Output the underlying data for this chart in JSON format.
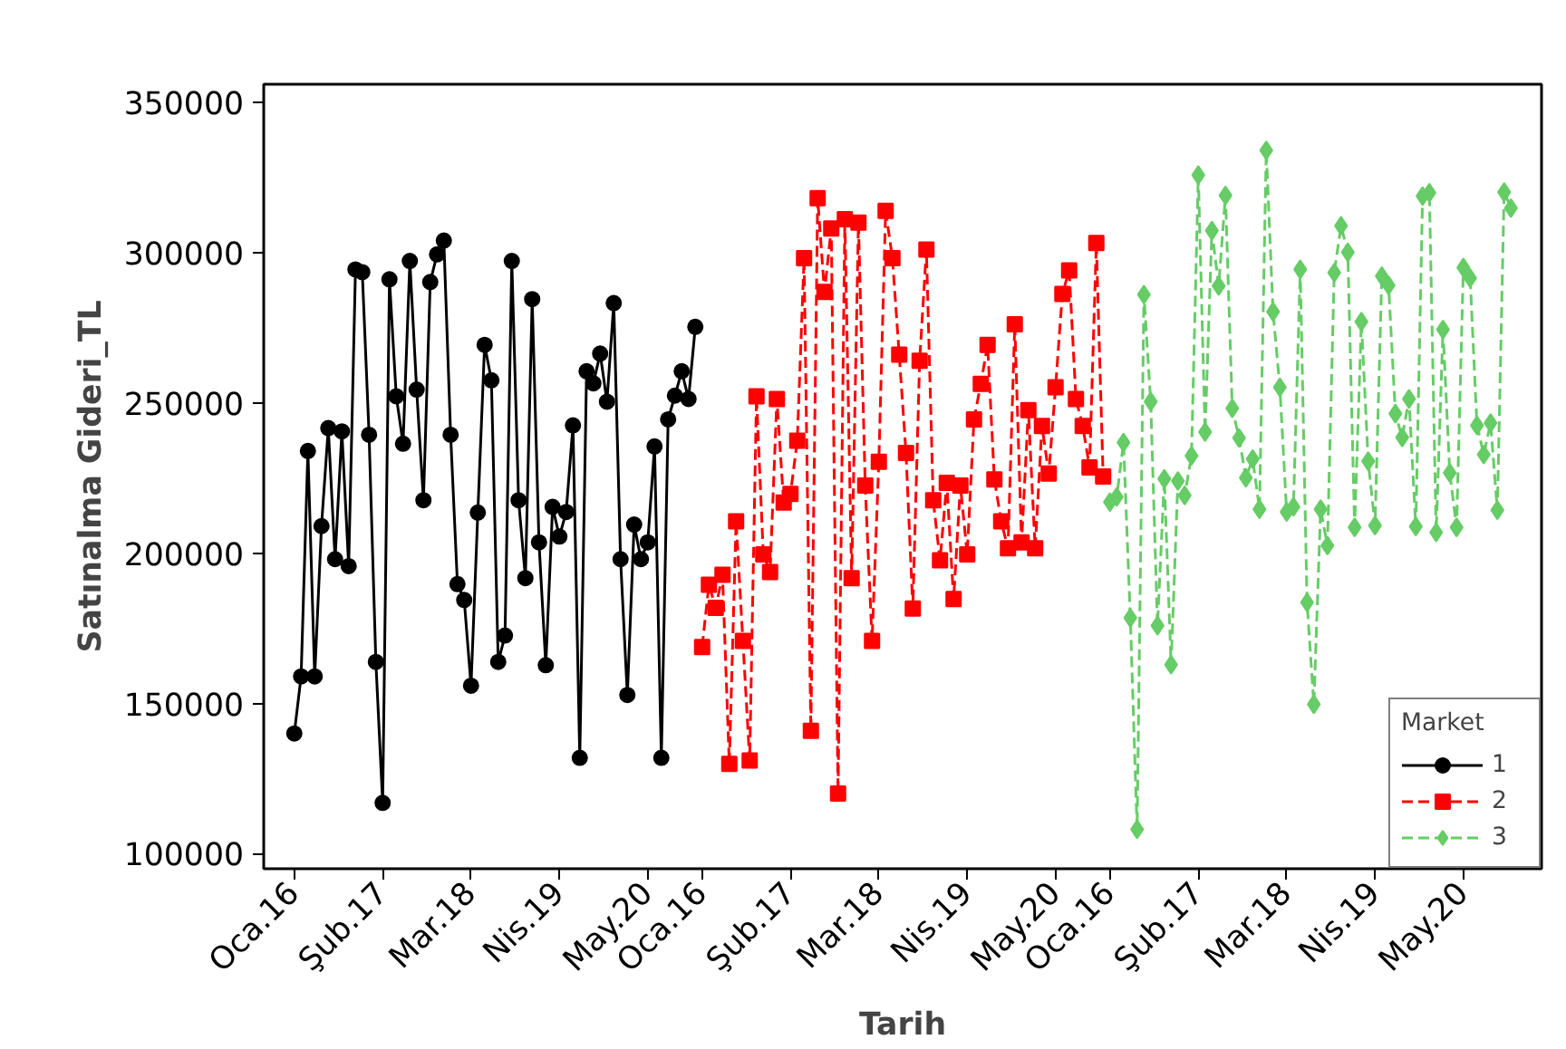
{
  "chart_data": {
    "type": "line",
    "xlabel": "Tarih",
    "ylabel": "Satınalma Gideri_TL",
    "legend_title": "Market",
    "categories": [
      "Oca.16",
      null,
      null,
      null,
      null,
      null,
      null,
      null,
      null,
      null,
      null,
      null,
      null,
      "Şub.17",
      null,
      null,
      null,
      null,
      null,
      null,
      null,
      null,
      null,
      null,
      null,
      null,
      "Mar.18",
      null,
      null,
      null,
      null,
      null,
      null,
      null,
      null,
      null,
      null,
      null,
      null,
      "Nis.19",
      null,
      null,
      null,
      null,
      null,
      null,
      null,
      null,
      null,
      null,
      null,
      null,
      "May.20",
      null,
      null,
      null,
      null,
      null,
      null,
      null,
      "Oca.16",
      null,
      null,
      null,
      null,
      null,
      null,
      null,
      null,
      null,
      null,
      null,
      null,
      "Şub.17",
      null,
      null,
      null,
      null,
      null,
      null,
      null,
      null,
      null,
      null,
      null,
      null,
      "Mar.18",
      null,
      null,
      null,
      null,
      null,
      null,
      null,
      null,
      null,
      null,
      null,
      null,
      "Nis.19",
      null,
      null,
      null,
      null,
      null,
      null,
      null,
      null,
      null,
      null,
      null,
      null,
      "May.20",
      null,
      null,
      null,
      null,
      null,
      null,
      null,
      "Oca.16",
      null,
      null,
      null,
      null,
      null,
      null,
      null,
      null,
      null,
      null,
      null,
      null,
      "Şub.17",
      null,
      null,
      null,
      null,
      null,
      null,
      null,
      null,
      null,
      null,
      null,
      null,
      "Mar.18",
      null,
      null,
      null,
      null,
      null,
      null,
      null,
      null,
      null,
      null,
      null,
      null,
      "Nis.19",
      null,
      null,
      null,
      null,
      null,
      null,
      null,
      null,
      null,
      null,
      null,
      null,
      "May.20",
      null,
      null,
      null,
      null,
      null,
      null,
      null
    ],
    "series": [
      {
        "name": "1",
        "color": "#000000",
        "marker": "circle",
        "line_style": "solid",
        "values": [
          140000,
          159000,
          234000,
          159000,
          209000,
          241600,
          198000,
          240500,
          195700,
          294400,
          293500,
          239400,
          163800,
          116900,
          291100,
          252200,
          236400,
          297200,
          254400,
          217600,
          290200,
          299400,
          304000,
          239400,
          189700,
          184400,
          155900,
          213500,
          269300,
          257500,
          163800,
          172600,
          297200,
          217600,
          191700,
          284500,
          203600,
          162700,
          215400,
          205500,
          213700,
          242500,
          131900,
          260500,
          256500,
          266400,
          250400,
          283200,
          198000,
          152800,
          209500,
          198000,
          203600,
          235500,
          131900,
          244500,
          252400,
          260500,
          251300,
          275300,
          null,
          null,
          null,
          null,
          null,
          null,
          null,
          null,
          null,
          null,
          null,
          null,
          null,
          null,
          null,
          null,
          null,
          null,
          null,
          null,
          null,
          null,
          null,
          null,
          null,
          null,
          null,
          null,
          null,
          null,
          null,
          null,
          null,
          null,
          null,
          null,
          null,
          null,
          null,
          null,
          null,
          null,
          null,
          null,
          null,
          null,
          null,
          null,
          null,
          null,
          null,
          null,
          null,
          null,
          null,
          null,
          null,
          null,
          null,
          null,
          null,
          null,
          null,
          null,
          null,
          null,
          null,
          null,
          null,
          null,
          null,
          null,
          null,
          null,
          null,
          null,
          null,
          null,
          null,
          null,
          null,
          null,
          null,
          null,
          null,
          null,
          null,
          null,
          null,
          null,
          null,
          null,
          null,
          null,
          null,
          null,
          null,
          null,
          null,
          null,
          null,
          null,
          null,
          null,
          null,
          null,
          null,
          null,
          null,
          null,
          null,
          null,
          null,
          null,
          null,
          null,
          null,
          null,
          null,
          null
        ]
      },
      {
        "name": "2",
        "color": "#ff0000",
        "marker": "square",
        "line_style": "dashed",
        "values": [
          null,
          null,
          null,
          null,
          null,
          null,
          null,
          null,
          null,
          null,
          null,
          null,
          null,
          null,
          null,
          null,
          null,
          null,
          null,
          null,
          null,
          null,
          null,
          null,
          null,
          null,
          null,
          null,
          null,
          null,
          null,
          null,
          null,
          null,
          null,
          null,
          null,
          null,
          null,
          null,
          null,
          null,
          null,
          null,
          null,
          null,
          null,
          null,
          null,
          null,
          null,
          null,
          null,
          null,
          null,
          null,
          null,
          null,
          null,
          null,
          168800,
          189500,
          181800,
          192800,
          129900,
          210600,
          170800,
          131000,
          252200,
          199600,
          193700,
          251300,
          216800,
          219700,
          237400,
          298100,
          140900,
          318100,
          286900,
          308000,
          120000,
          311100,
          191700,
          310000,
          222500,
          170800,
          230400,
          313900,
          298100,
          266000,
          233300,
          181600,
          264000,
          301000,
          217600,
          197600,
          223400,
          184700,
          222500,
          199600,
          244500,
          256300,
          269300,
          224500,
          210600,
          201600,
          276100,
          203600,
          247600,
          201600,
          242300,
          226500,
          255200,
          286200,
          294100,
          251300,
          242300,
          228500,
          303200,
          225500,
          null,
          null,
          null,
          null,
          null,
          null,
          null,
          null,
          null,
          null,
          null,
          null,
          null,
          null,
          null,
          null,
          null,
          null,
          null,
          null,
          null,
          null,
          null,
          null,
          null,
          null,
          null,
          null,
          null,
          null,
          null,
          null,
          null,
          null,
          null,
          null,
          null,
          null,
          null,
          null,
          null,
          null,
          null,
          null,
          null,
          null,
          null,
          null,
          null,
          null,
          null,
          null,
          null,
          null,
          null,
          null,
          null,
          null,
          null,
          null
        ]
      },
      {
        "name": "3",
        "color": "#66cc66",
        "marker": "diamond",
        "line_style": "dashed",
        "values": [
          null,
          null,
          null,
          null,
          null,
          null,
          null,
          null,
          null,
          null,
          null,
          null,
          null,
          null,
          null,
          null,
          null,
          null,
          null,
          null,
          null,
          null,
          null,
          null,
          null,
          null,
          null,
          null,
          null,
          null,
          null,
          null,
          null,
          null,
          null,
          null,
          null,
          null,
          null,
          null,
          null,
          null,
          null,
          null,
          null,
          null,
          null,
          null,
          null,
          null,
          null,
          null,
          null,
          null,
          null,
          null,
          null,
          null,
          null,
          null,
          null,
          null,
          null,
          null,
          null,
          null,
          null,
          null,
          null,
          null,
          null,
          null,
          null,
          null,
          null,
          null,
          null,
          null,
          null,
          null,
          null,
          null,
          null,
          null,
          null,
          null,
          null,
          null,
          null,
          null,
          null,
          null,
          null,
          null,
          null,
          null,
          null,
          null,
          null,
          null,
          null,
          null,
          null,
          null,
          null,
          null,
          null,
          null,
          null,
          null,
          null,
          null,
          null,
          null,
          null,
          null,
          null,
          null,
          null,
          null,
          217000,
          218700,
          236800,
          178500,
          108100,
          286000,
          250400,
          175900,
          224700,
          162900,
          224000,
          219200,
          232400,
          325800,
          240300,
          307300,
          288900,
          319000,
          248200,
          238300,
          225100,
          231300,
          214600,
          334000,
          280300,
          255200,
          213700,
          215400,
          294400,
          183600,
          149700,
          214600,
          202500,
          293300,
          308900,
          300100,
          208600,
          277000,
          230600,
          209200,
          292200,
          289100,
          246400,
          238500,
          251300,
          208900,
          318800,
          319900,
          206900,
          274400,
          226700,
          208600,
          295000,
          291500,
          242500,
          232800,
          243300,
          214300,
          320100,
          314800
        ]
      }
    ],
    "ylim": [
      95000,
      356000
    ],
    "yticks": [
      100000,
      150000,
      200000,
      250000,
      300000,
      350000
    ],
    "legend": "bottom right"
  }
}
